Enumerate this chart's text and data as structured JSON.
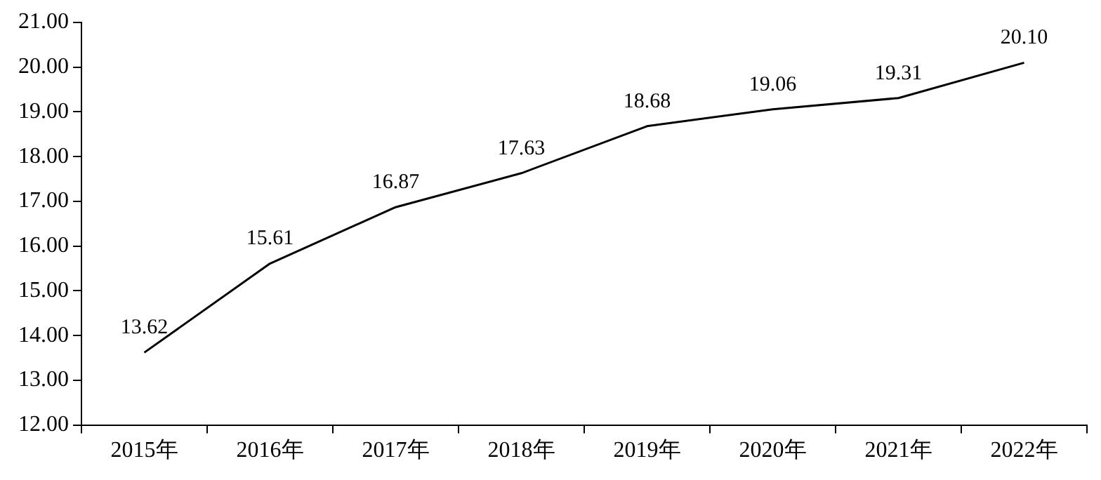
{
  "chart_data": {
    "type": "line",
    "categories": [
      "2015年",
      "2016年",
      "2017年",
      "2018年",
      "2019年",
      "2020年",
      "2021年",
      "2022年"
    ],
    "series": [
      {
        "color": "#000000",
        "values": [
          13.62,
          15.61,
          16.87,
          17.63,
          18.68,
          19.06,
          19.31,
          20.1
        ],
        "value_labels": [
          "13.62",
          "15.61",
          "16.87",
          "17.63",
          "18.68",
          "19.06",
          "19.31",
          "20.10"
        ]
      }
    ],
    "ylim": [
      12,
      21
    ],
    "yticks": [
      {
        "value": 12,
        "label": "12.00"
      },
      {
        "value": 13,
        "label": "13.00"
      },
      {
        "value": 14,
        "label": "14.00"
      },
      {
        "value": 15,
        "label": "15.00"
      },
      {
        "value": 16,
        "label": "16.00"
      },
      {
        "value": 17,
        "label": "17.00"
      },
      {
        "value": 18,
        "label": "18.00"
      },
      {
        "value": 19,
        "label": "19.00"
      },
      {
        "value": 20,
        "label": "20.00"
      },
      {
        "value": 21,
        "label": "21.00"
      }
    ],
    "grid": false,
    "legend": false,
    "marker": "none",
    "line_style": "solid"
  }
}
